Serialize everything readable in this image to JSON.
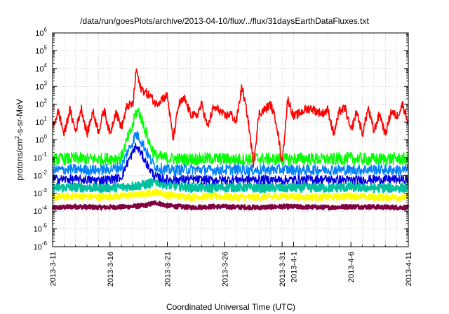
{
  "chart_data": {
    "type": "line",
    "title": "/data/run/goesPlots/archive/2013-04-10/flux/../flux/31daysEarthDataFluxes.txt",
    "xlabel": "Coordinated Universal Time (UTC)",
    "ylabel": "protons/cm²-s-sr-MeV",
    "y_scale": "log",
    "ylim_exponents": [
      -6,
      6
    ],
    "y_tick_labels": [
      "10-6",
      "10-5",
      "10-4",
      "10-3",
      "10-2",
      "10-1",
      "100",
      "101",
      "102",
      "103",
      "104",
      "105",
      "106"
    ],
    "xlim": [
      "2013-03-11",
      "2013-04-11"
    ],
    "x_tick_labels": [
      "2013-3-11",
      "2013-3-16",
      "2013-3-21",
      "2013-3-26",
      "2013-3-31",
      "2013-4-1",
      "2013-4-6",
      "2013-4-11"
    ],
    "x_tick_days": [
      0,
      5,
      10,
      15,
      20,
      21,
      26,
      31
    ],
    "grid": true,
    "legend": "none",
    "series": [
      {
        "color": "#800040",
        "x_days": [
          0,
          2,
          4,
          6,
          8,
          9,
          10,
          12,
          14,
          16,
          18,
          20,
          22,
          24,
          26,
          28,
          30,
          31
        ],
        "values": [
          0.00015,
          0.00018,
          0.00016,
          0.00017,
          0.0002,
          0.0003,
          0.0002,
          0.00016,
          0.00018,
          0.00017,
          0.00016,
          0.00018,
          0.00017,
          0.00016,
          0.00018,
          0.00017,
          0.00016,
          0.00016
        ]
      },
      {
        "color": "#ffff00",
        "x_days": [
          0,
          2,
          4,
          6,
          8,
          9,
          10,
          12,
          14,
          16,
          18,
          20,
          22,
          24,
          26,
          28,
          30,
          31
        ],
        "values": [
          0.0006,
          0.0007,
          0.0006,
          0.0007,
          0.0009,
          0.0012,
          0.0008,
          0.0006,
          0.0007,
          0.0006,
          0.0006,
          0.0007,
          0.0006,
          0.0006,
          0.0007,
          0.0006,
          0.0006,
          0.0006
        ]
      },
      {
        "color": "#00c0a0",
        "x_days": [
          0,
          2,
          4,
          6,
          8,
          9,
          10,
          12,
          14,
          16,
          18,
          20,
          22,
          24,
          26,
          28,
          30,
          31
        ],
        "values": [
          0.002,
          0.0022,
          0.002,
          0.0022,
          0.003,
          0.0045,
          0.003,
          0.0021,
          0.002,
          0.0022,
          0.002,
          0.002,
          0.0021,
          0.002,
          0.0022,
          0.002,
          0.002,
          0.002
        ]
      },
      {
        "color": "#00ff00",
        "x_days": [
          0,
          2,
          4,
          5,
          6,
          6.5,
          7,
          7.2,
          7.5,
          8,
          8.5,
          9,
          10,
          12,
          14,
          16,
          18,
          20,
          22,
          24,
          26,
          28,
          30,
          31
        ],
        "values": [
          0.08,
          0.09,
          0.08,
          0.09,
          0.1,
          1.0,
          6.0,
          30.0,
          40.0,
          5.0,
          0.5,
          0.12,
          0.09,
          0.08,
          0.09,
          0.08,
          0.09,
          0.08,
          0.09,
          0.08,
          0.09,
          0.08,
          0.09,
          0.08
        ]
      },
      {
        "color": "#0080ff",
        "x_days": [
          0,
          2,
          4,
          5,
          6,
          6.5,
          7,
          7.2,
          7.5,
          8,
          8.5,
          9,
          10,
          12,
          14,
          16,
          18,
          20,
          22,
          24,
          26,
          28,
          30,
          31
        ],
        "values": [
          0.02,
          0.022,
          0.02,
          0.022,
          0.03,
          0.2,
          0.8,
          2.0,
          1.5,
          0.4,
          0.08,
          0.03,
          0.02,
          0.022,
          0.02,
          0.022,
          0.02,
          0.022,
          0.02,
          0.022,
          0.02,
          0.022,
          0.02,
          0.02
        ]
      },
      {
        "color": "#0000e0",
        "x_days": [
          0,
          2,
          4,
          5,
          6,
          6.5,
          7,
          7.2,
          7.5,
          8,
          8.5,
          9,
          10,
          12,
          14,
          16,
          18,
          20,
          22,
          24,
          26,
          28,
          30,
          31
        ],
        "values": [
          0.006,
          0.006,
          0.0055,
          0.006,
          0.008,
          0.05,
          0.2,
          0.4,
          0.3,
          0.08,
          0.02,
          0.008,
          0.006,
          0.006,
          0.0055,
          0.006,
          0.006,
          0.0055,
          0.006,
          0.006,
          0.0055,
          0.006,
          0.006,
          0.006
        ]
      },
      {
        "color": "#ff0000",
        "x_days": [
          0,
          0.5,
          1,
          1.5,
          2,
          2.5,
          3,
          3.5,
          4,
          4.5,
          5,
          5.5,
          6,
          6.5,
          7,
          7.3,
          7.6,
          8,
          8.5,
          9,
          9.5,
          10,
          10.5,
          11,
          11.5,
          12,
          12.5,
          13,
          13.5,
          14,
          14.5,
          15,
          15.5,
          16,
          16.5,
          17,
          17.5,
          18,
          18.5,
          19,
          19.5,
          20,
          20.5,
          21,
          21.5,
          22,
          22.5,
          23,
          23.5,
          24,
          24.5,
          25,
          25.5,
          26,
          26.5,
          27,
          27.5,
          28,
          28.5,
          29,
          29.5,
          30,
          30.5,
          31
        ],
        "values": [
          5,
          40,
          2,
          50,
          3,
          60,
          2,
          40,
          3,
          50,
          2,
          40,
          5,
          80,
          100,
          10000,
          1000,
          500,
          300,
          100,
          200,
          300,
          1,
          100,
          200,
          30,
          20,
          100,
          5,
          60,
          50,
          20,
          30,
          10,
          1000,
          20,
          0.05,
          30,
          50,
          100,
          10,
          0.05,
          200,
          20,
          30,
          50,
          60,
          40,
          30,
          50,
          2,
          40,
          60,
          3,
          40,
          2,
          60,
          3,
          30,
          2,
          40,
          20,
          100,
          10
        ]
      }
    ]
  }
}
